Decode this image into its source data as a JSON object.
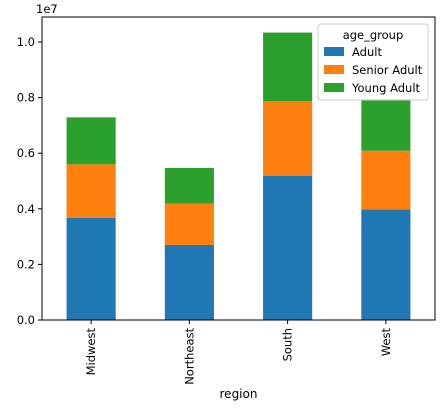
{
  "chart_data": {
    "type": "bar",
    "stacked": true,
    "categories": [
      "Midwest",
      "Northeast",
      "South",
      "West"
    ],
    "series": [
      {
        "name": "Adult",
        "color": "#1f77b4",
        "values": [
          3680000,
          2700000,
          5180000,
          3980000
        ]
      },
      {
        "name": "Senior Adult",
        "color": "#ff7f0e",
        "values": [
          1920000,
          1480000,
          2690000,
          2110000
        ]
      },
      {
        "name": "Young Adult",
        "color": "#2ca02c",
        "values": [
          1690000,
          1290000,
          2470000,
          1850000
        ]
      }
    ],
    "xlabel": "region",
    "ylabel": "",
    "ylim": [
      0,
      10900000
    ],
    "yticks": [
      0,
      2000000,
      4000000,
      6000000,
      8000000,
      10000000
    ],
    "ytick_labels": [
      "0.0",
      "0.2",
      "0.4",
      "0.6",
      "0.8",
      "1.0"
    ],
    "y_offset_label": "1e7",
    "legend": {
      "title": "age_group",
      "placement": "top-right"
    },
    "grid": false
  }
}
